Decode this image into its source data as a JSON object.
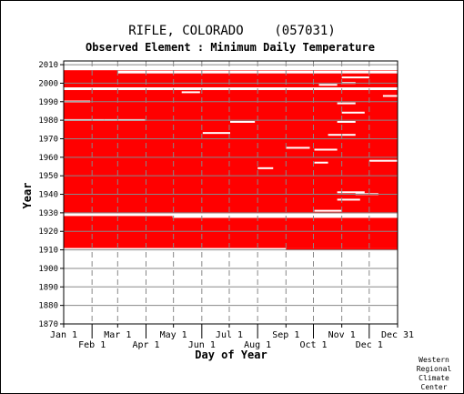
{
  "chart_data": {
    "type": "heatmap",
    "title": "RIFLE, COLORADO    (057031)",
    "subtitle": "Observed Element : Minimum Daily Temperature",
    "xlabel": "Day of Year",
    "ylabel": "Year",
    "credit": [
      "Western",
      "Regional",
      "Climate",
      "Center"
    ],
    "colors": {
      "observed": "#ff0000",
      "missing": "#ffffff",
      "grid": "#888888"
    },
    "x_range_days": [
      1,
      366
    ],
    "ylim": [
      1870,
      2012
    ],
    "y_ticks": [
      1870,
      1880,
      1890,
      1900,
      1910,
      1920,
      1930,
      1940,
      1950,
      1960,
      1970,
      1980,
      1990,
      2000,
      2010
    ],
    "x_ticks_top": [
      {
        "label": "Jan 1",
        "day": 1
      },
      {
        "label": "Mar 1",
        "day": 60
      },
      {
        "label": "May 1",
        "day": 121
      },
      {
        "label": "Jul 1",
        "day": 182
      },
      {
        "label": "Sep 1",
        "day": 244
      },
      {
        "label": "Nov 1",
        "day": 305
      },
      {
        "label": "Dec 31",
        "day": 366
      }
    ],
    "x_ticks_bottom": [
      {
        "label": "Feb 1",
        "day": 32
      },
      {
        "label": "Apr 1",
        "day": 91
      },
      {
        "label": "Jun 1",
        "day": 152
      },
      {
        "label": "Aug 1",
        "day": 213
      },
      {
        "label": "Oct 1",
        "day": 274
      },
      {
        "label": "Dec 1",
        "day": 335
      }
    ],
    "observed_periods": [
      {
        "from_year": 1911,
        "from_day": 1,
        "to_year": 1911,
        "to_day": 244
      },
      {
        "from_year": 1910,
        "from_day": 244,
        "to_year": 1910,
        "to_day": 366
      },
      {
        "from_year": 1911,
        "from_day": 1,
        "to_year": 2006,
        "to_day": 366
      }
    ],
    "missing_years": [
      {
        "year": 1929,
        "from_day": 1,
        "to_day": 366
      },
      {
        "year": 1928,
        "from_day": 120,
        "to_day": 366
      },
      {
        "year": 1997,
        "from_day": 1,
        "to_day": 366
      },
      {
        "year": 2006,
        "from_day": 60,
        "to_day": 366
      }
    ],
    "missing_gaps": [
      {
        "year": 1990,
        "from_day": 1,
        "to_day": 30
      },
      {
        "year": 1980,
        "from_day": 1,
        "to_day": 45
      },
      {
        "year": 1980,
        "from_day": 45,
        "to_day": 90
      },
      {
        "year": 1979,
        "from_day": 183,
        "to_day": 210
      },
      {
        "year": 1979,
        "from_day": 300,
        "to_day": 320
      },
      {
        "year": 1973,
        "from_day": 153,
        "to_day": 183
      },
      {
        "year": 1972,
        "from_day": 290,
        "to_day": 320
      },
      {
        "year": 1965,
        "from_day": 244,
        "to_day": 270
      },
      {
        "year": 1964,
        "from_day": 275,
        "to_day": 300
      },
      {
        "year": 1958,
        "from_day": 335,
        "to_day": 366
      },
      {
        "year": 1957,
        "from_day": 275,
        "to_day": 290
      },
      {
        "year": 1954,
        "from_day": 213,
        "to_day": 230
      },
      {
        "year": 1941,
        "from_day": 300,
        "to_day": 330
      },
      {
        "year": 1940,
        "from_day": 320,
        "to_day": 345
      },
      {
        "year": 1937,
        "from_day": 300,
        "to_day": 325
      },
      {
        "year": 1931,
        "from_day": 275,
        "to_day": 305
      },
      {
        "year": 2003,
        "from_day": 305,
        "to_day": 335
      },
      {
        "year": 2000,
        "from_day": 305,
        "to_day": 320
      },
      {
        "year": 1989,
        "from_day": 300,
        "to_day": 320
      },
      {
        "year": 1984,
        "from_day": 305,
        "to_day": 330
      },
      {
        "year": 1993,
        "from_day": 350,
        "to_day": 366
      },
      {
        "year": 1999,
        "from_day": 280,
        "to_day": 300
      },
      {
        "year": 1995,
        "from_day": 130,
        "to_day": 150
      }
    ]
  }
}
